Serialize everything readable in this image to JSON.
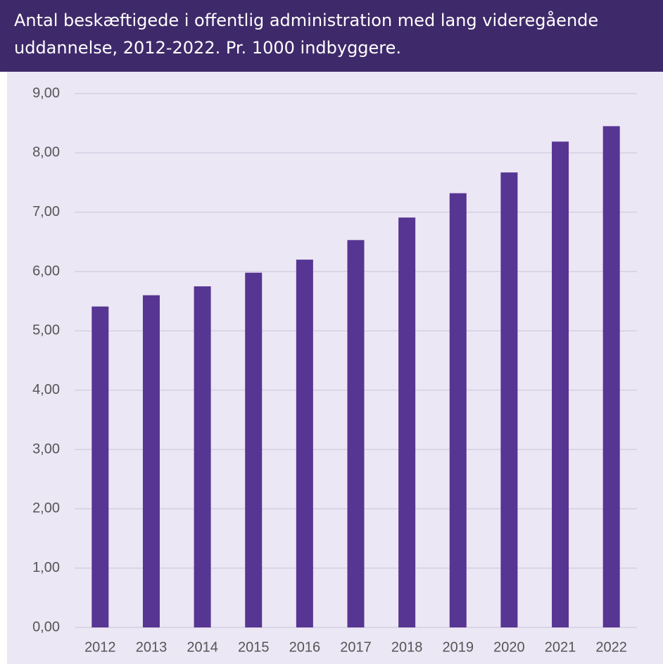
{
  "chart_data": {
    "type": "bar",
    "title": "Antal beskæftigede i offentlig administration med lang videregående uddannelse, 2012-2022. Pr. 1000 indbyggere.",
    "categories": [
      "2012",
      "2013",
      "2014",
      "2015",
      "2016",
      "2017",
      "2018",
      "2019",
      "2020",
      "2021",
      "2022"
    ],
    "values": [
      5.41,
      5.6,
      5.75,
      5.98,
      6.2,
      6.53,
      6.91,
      7.32,
      7.67,
      8.19,
      8.45
    ],
    "color": "#573592",
    "ylim": [
      0,
      9
    ],
    "yticks": [
      {
        "value": 0,
        "label": "0,00"
      },
      {
        "value": 1,
        "label": "1,00"
      },
      {
        "value": 2,
        "label": "2,00"
      },
      {
        "value": 3,
        "label": "3,00"
      },
      {
        "value": 4,
        "label": "4,00"
      },
      {
        "value": 5,
        "label": "5,00"
      },
      {
        "value": 6,
        "label": "6,00"
      },
      {
        "value": 7,
        "label": "7,00"
      },
      {
        "value": 8,
        "label": "8,00"
      },
      {
        "value": 9,
        "label": "9,00"
      }
    ],
    "grid": true
  }
}
